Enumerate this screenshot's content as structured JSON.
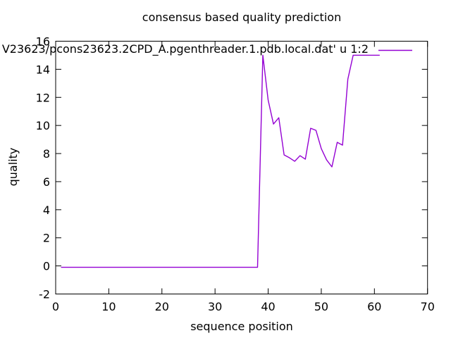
{
  "window": {
    "background": "#ffffff"
  },
  "chart_data": {
    "type": "line",
    "title": "consensus based quality prediction",
    "xlabel": "sequence position",
    "ylabel": "quality",
    "xlim": [
      0,
      70
    ],
    "ylim": [
      -2,
      16
    ],
    "xticks": [
      0,
      10,
      20,
      30,
      40,
      50,
      60,
      70
    ],
    "yticks": [
      -2,
      0,
      2,
      4,
      6,
      8,
      10,
      12,
      14,
      16
    ],
    "grid": false,
    "border": true,
    "tick_style": "inward-mirrored",
    "axis_color": "#000000",
    "legend": {
      "label": "V23623/pcons23623.2CPD_A.pgenthreader.1.pdb.local.dat' u 1:2",
      "position": "top-right-inside",
      "clipped_left": true
    },
    "series": [
      {
        "name": "V23623/pcons23623.2CPD_A.pgenthreader.1.pdb.local.dat' u 1:2",
        "color": "#9400d3",
        "points": [
          [
            1,
            -0.1
          ],
          [
            2,
            -0.1
          ],
          [
            3,
            -0.1
          ],
          [
            4,
            -0.1
          ],
          [
            5,
            -0.1
          ],
          [
            6,
            -0.1
          ],
          [
            7,
            -0.1
          ],
          [
            8,
            -0.1
          ],
          [
            9,
            -0.1
          ],
          [
            10,
            -0.1
          ],
          [
            11,
            -0.1
          ],
          [
            12,
            -0.1
          ],
          [
            13,
            -0.1
          ],
          [
            14,
            -0.1
          ],
          [
            15,
            -0.1
          ],
          [
            16,
            -0.1
          ],
          [
            17,
            -0.1
          ],
          [
            18,
            -0.1
          ],
          [
            19,
            -0.1
          ],
          [
            20,
            -0.1
          ],
          [
            21,
            -0.1
          ],
          [
            22,
            -0.1
          ],
          [
            23,
            -0.1
          ],
          [
            24,
            -0.1
          ],
          [
            25,
            -0.1
          ],
          [
            26,
            -0.1
          ],
          [
            27,
            -0.1
          ],
          [
            28,
            -0.1
          ],
          [
            29,
            -0.1
          ],
          [
            30,
            -0.1
          ],
          [
            31,
            -0.1
          ],
          [
            32,
            -0.1
          ],
          [
            33,
            -0.1
          ],
          [
            34,
            -0.1
          ],
          [
            35,
            -0.1
          ],
          [
            36,
            -0.1
          ],
          [
            37,
            -0.1
          ],
          [
            38,
            -0.1
          ],
          [
            39,
            15.0
          ],
          [
            40,
            11.8
          ],
          [
            41,
            10.1
          ],
          [
            42,
            10.55
          ],
          [
            43,
            7.9
          ],
          [
            44,
            7.7
          ],
          [
            45,
            7.45
          ],
          [
            46,
            7.85
          ],
          [
            47,
            7.6
          ],
          [
            48,
            9.8
          ],
          [
            49,
            9.65
          ],
          [
            50,
            8.35
          ],
          [
            51,
            7.55
          ],
          [
            52,
            7.05
          ],
          [
            53,
            8.8
          ],
          [
            54,
            8.6
          ],
          [
            55,
            13.3
          ],
          [
            56,
            15.0
          ],
          [
            57,
            15.0
          ],
          [
            58,
            15.0
          ],
          [
            59,
            15.0
          ],
          [
            60,
            15.0
          ],
          [
            61,
            15.0
          ]
        ]
      }
    ]
  }
}
